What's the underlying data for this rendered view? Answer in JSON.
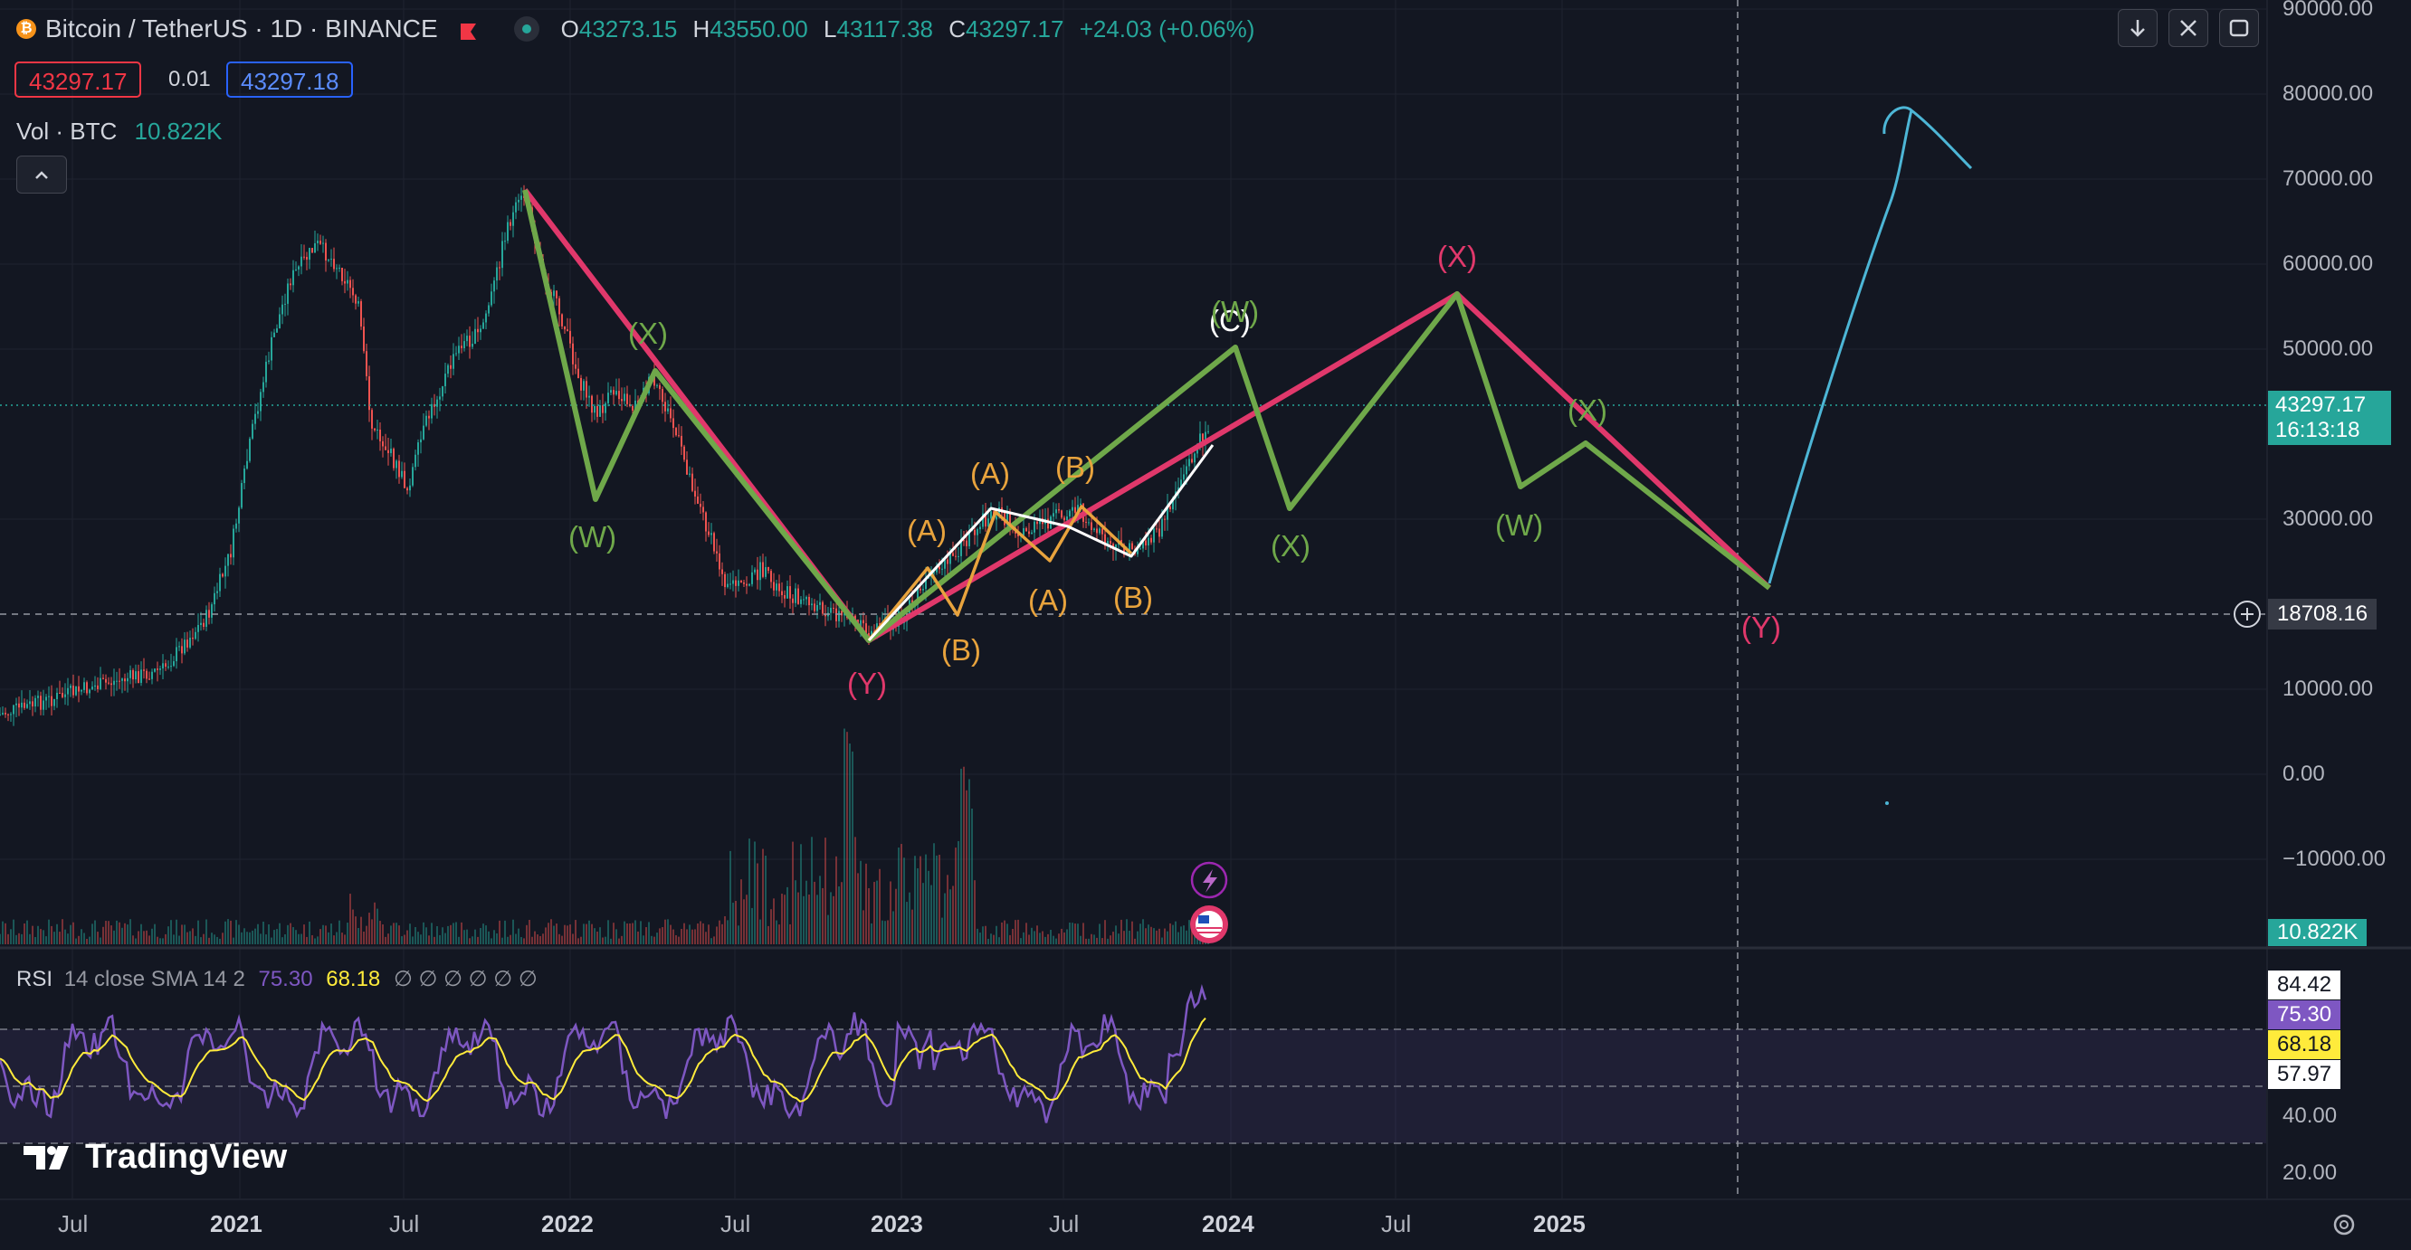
{
  "header": {
    "symbol_title": "Bitcoin / TetherUS · 1D · BINANCE",
    "ohlc": {
      "o_label": "O",
      "o_value": "43273.15",
      "h_label": "H",
      "h_value": "43550.00",
      "l_label": "L",
      "l_value": "43117.38",
      "c_label": "C",
      "c_value": "43297.17",
      "change": "+24.03 (+0.06%)"
    },
    "sell_price": "43297.17",
    "spread": "0.01",
    "buy_price": "43297.18",
    "volume_label": "Vol · BTC",
    "volume_value": "10.822K"
  },
  "price_axis": {
    "ticks": [
      "90000.00",
      "80000.00",
      "70000.00",
      "60000.00",
      "50000.00",
      "30000.00",
      "10000.00",
      "0.00",
      "−10000.00"
    ],
    "current_price": "43297.17",
    "countdown": "16:13:18",
    "crosshair_price": "18708.16",
    "volume_tag": "10.822K"
  },
  "rsi": {
    "label": "RSI",
    "params": "14 close SMA 14 2",
    "rsi_value": "75.30",
    "sma_value": "68.18",
    "dots": "∅ ∅ ∅ ∅ ∅ ∅",
    "ticks": [
      "40.00",
      "20.00"
    ],
    "tags": [
      "84.42",
      "75.30",
      "68.18",
      "57.97"
    ]
  },
  "time_axis": [
    "Jul",
    "2021",
    "Jul",
    "2022",
    "Jul",
    "2023",
    "Jul",
    "2024",
    "Jul",
    "2025"
  ],
  "wave_labels": {
    "w1": "(W)",
    "x1": "(X)",
    "y1": "(Y)",
    "a1": "(A)",
    "b1": "(B)",
    "a2": "(A)",
    "b2": "(B)",
    "a3": "(A)",
    "b3": "(B)",
    "c1": "(C)",
    "w2": "(W)",
    "x2": "(X)",
    "x3": "(X)",
    "w3": "(W)",
    "x4": "(X)",
    "y2": "(Y)"
  },
  "watermark": "TradingView",
  "colors": {
    "background": "#131722",
    "up": "#26a69a",
    "down": "#ef5350",
    "wave_green": "#6fa84a",
    "wave_pink": "#e0386b",
    "wave_orange": "#e8a33d",
    "projection_blue": "#4db6d6",
    "rsi_line": "#7e57c2",
    "rsi_sma": "#ffeb3b"
  },
  "icons": [
    "bitcoin-icon",
    "flag-icon",
    "eye-icon",
    "download-icon",
    "fullscreen-icon",
    "maximize-icon",
    "collapse-icon",
    "crosshair-plus-icon",
    "settings-icon",
    "flash-icon",
    "us-flag-icon"
  ]
}
